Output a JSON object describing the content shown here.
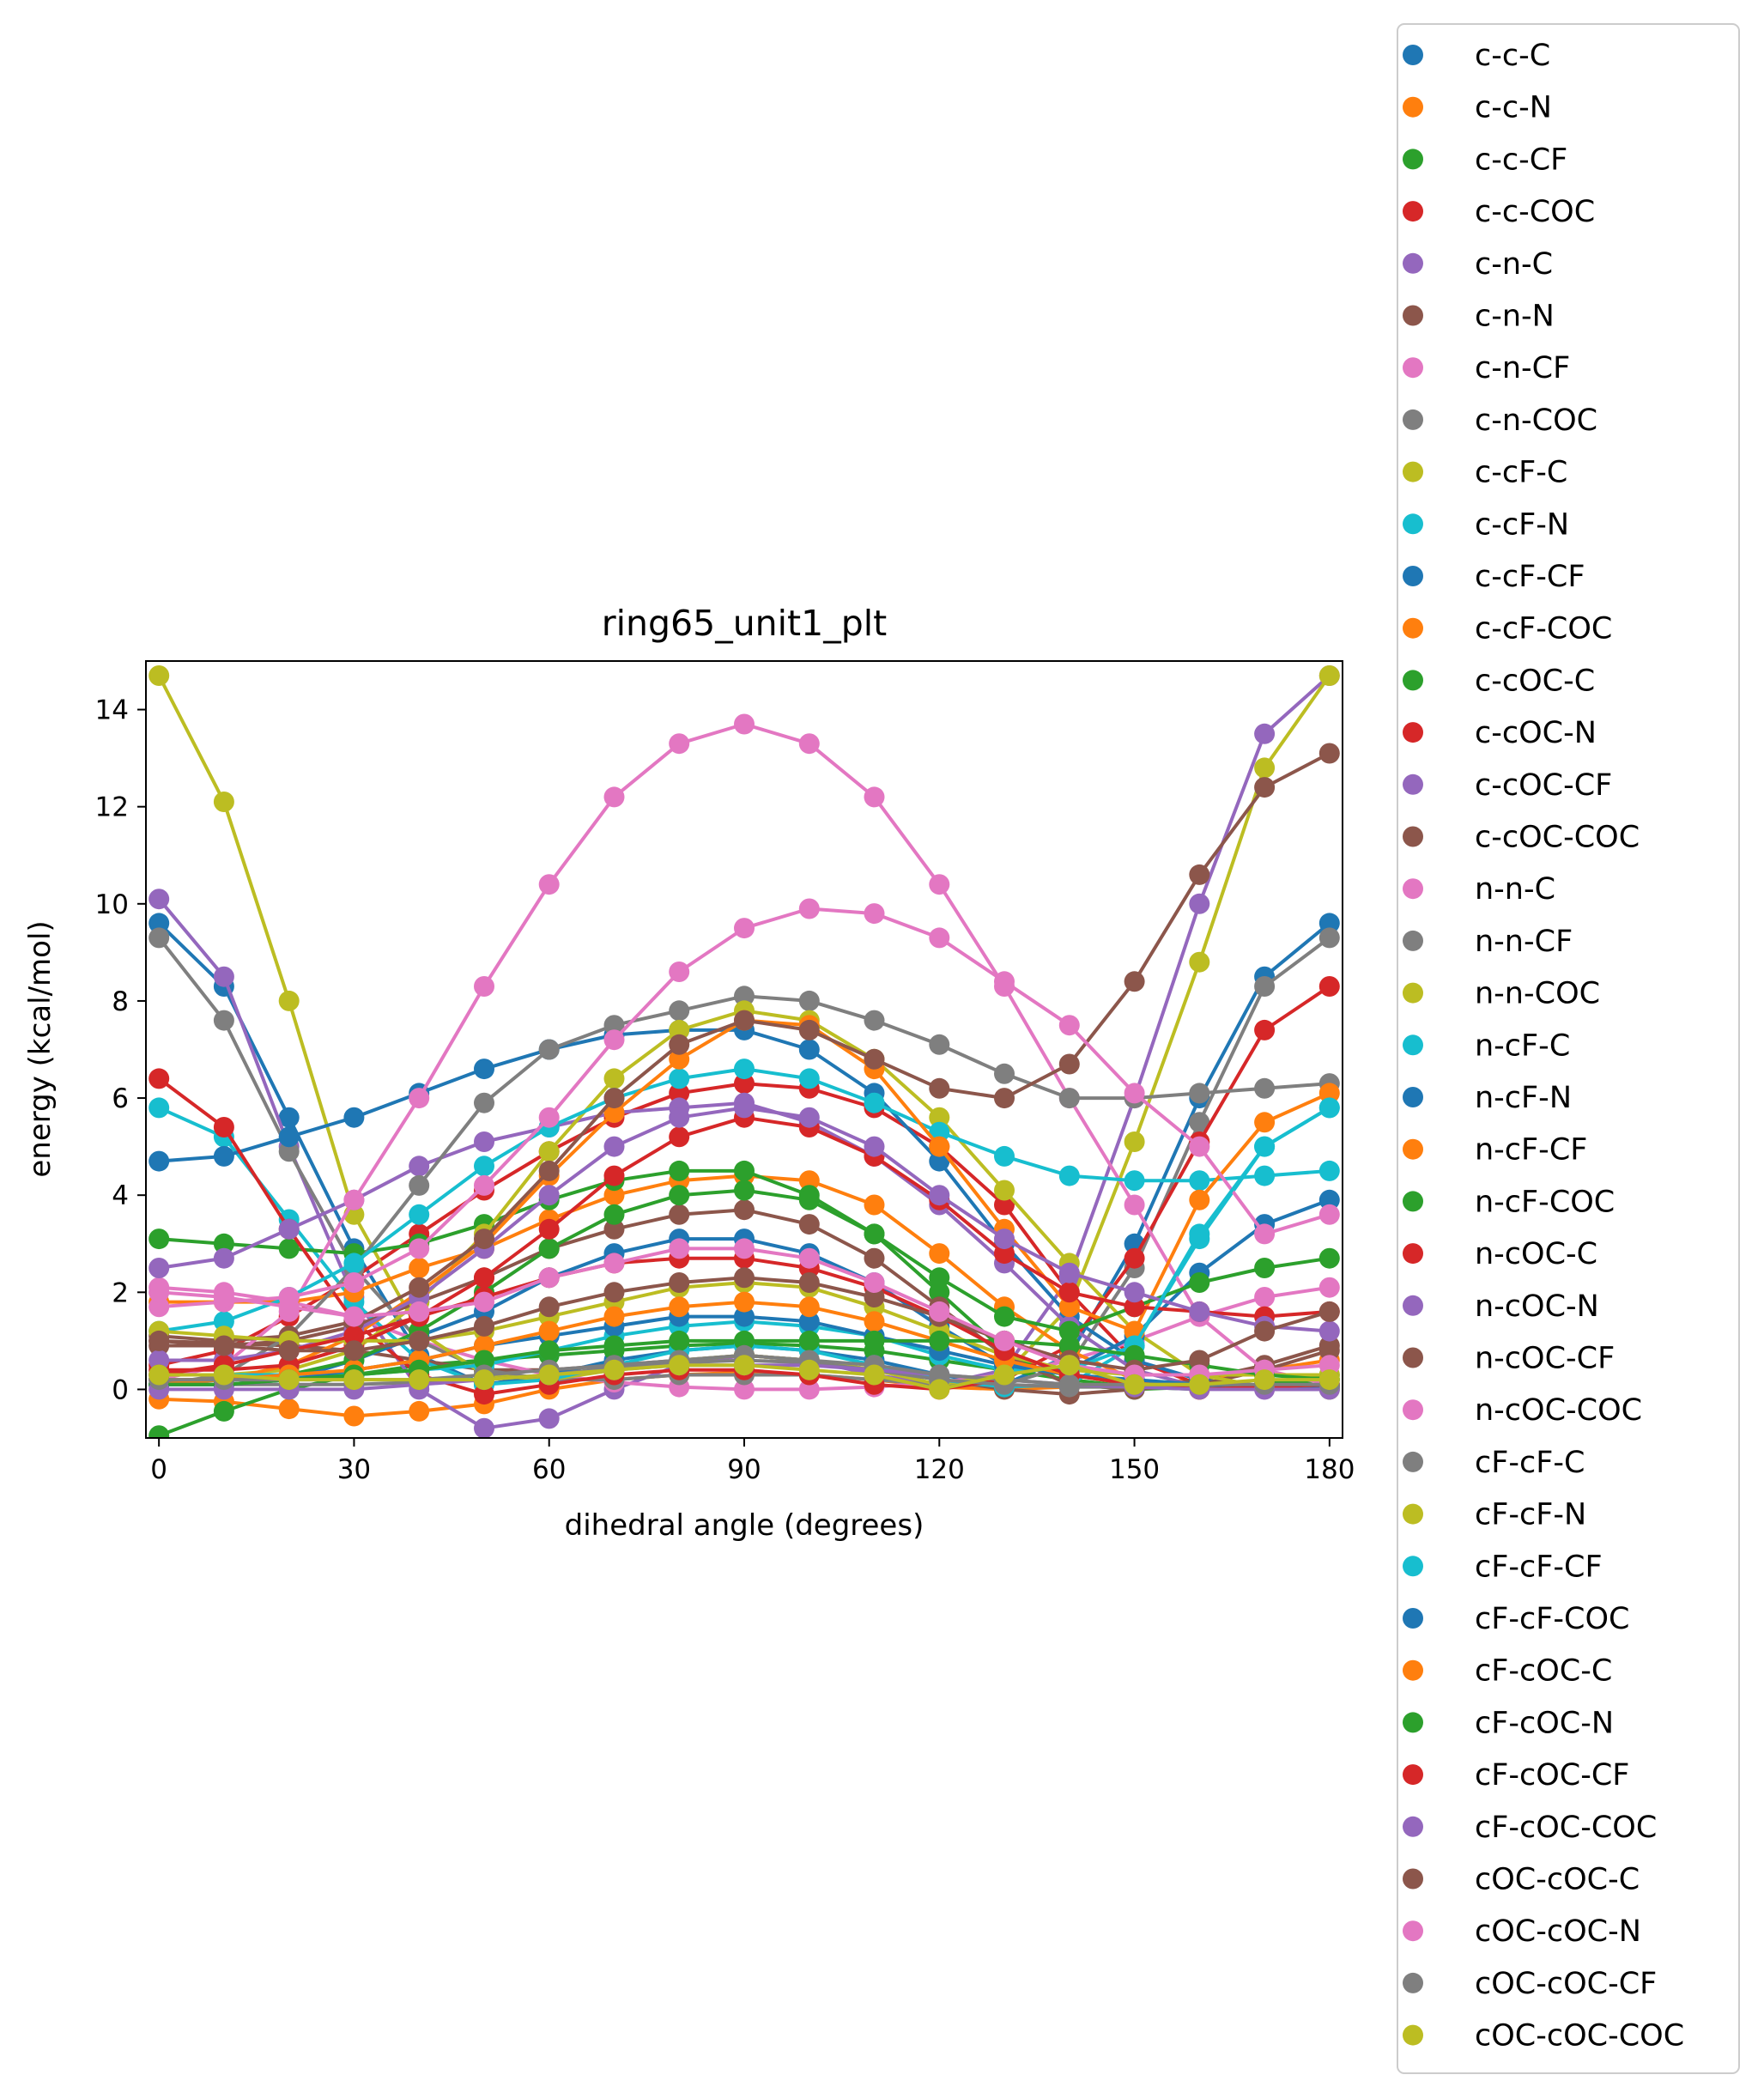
{
  "chart_data": {
    "type": "line",
    "title": "ring65_unit1_plt",
    "xlabel": "dihedral angle (degrees)",
    "ylabel": "energy (kcal/mol)",
    "xlim": [
      -2,
      182
    ],
    "ylim": [
      -1,
      15
    ],
    "xticks": [
      0,
      30,
      60,
      90,
      120,
      150,
      180
    ],
    "yticks": [
      0,
      2,
      4,
      6,
      8,
      10,
      12,
      14
    ],
    "grid": false,
    "legend_position": "outside-right",
    "markers": true,
    "x": [
      0,
      10,
      20,
      30,
      40,
      50,
      60,
      70,
      80,
      90,
      100,
      110,
      120,
      130,
      140,
      150,
      160,
      170,
      180
    ],
    "series": [
      {
        "name": "c-c-C",
        "color": "#1f77b4",
        "values": [
          9.6,
          8.3,
          5.6,
          2.9,
          0.7,
          0.1,
          0.3,
          0.6,
          0.8,
          0.9,
          0.8,
          0.6,
          0.3,
          0.1,
          0.7,
          3.0,
          6.0,
          8.5,
          9.6
        ]
      },
      {
        "name": "c-c-N",
        "color": "#ff7f0e",
        "values": [
          -0.2,
          -0.25,
          -0.4,
          -0.55,
          -0.45,
          -0.3,
          0.0,
          0.2,
          0.3,
          0.35,
          0.3,
          0.2,
          0.05,
          0.0,
          0.05,
          0.1,
          0.2,
          0.4,
          0.6
        ]
      },
      {
        "name": "c-c-CF",
        "color": "#2ca02c",
        "values": [
          -0.95,
          -0.45,
          0.0,
          0.3,
          0.5,
          0.6,
          0.7,
          0.8,
          0.9,
          0.95,
          0.9,
          0.8,
          0.6,
          0.4,
          0.2,
          0.05,
          0.0,
          0.1,
          0.3
        ]
      },
      {
        "name": "c-c-COC",
        "color": "#d62728",
        "values": [
          0.5,
          0.8,
          1.5,
          2.3,
          3.2,
          4.1,
          4.9,
          5.6,
          6.1,
          6.3,
          6.2,
          5.8,
          5.0,
          3.8,
          2.0,
          0.6,
          0.1,
          0.05,
          0.1
        ]
      },
      {
        "name": "c-n-C",
        "color": "#9467bd",
        "values": [
          10.1,
          8.5,
          5.0,
          1.9,
          0.0,
          -0.8,
          -0.6,
          0.0,
          0.5,
          0.7,
          0.6,
          0.3,
          0.1,
          0.4,
          2.3,
          6.0,
          10.0,
          13.5,
          14.7
        ]
      },
      {
        "name": "c-n-N",
        "color": "#8c564b",
        "values": [
          1.0,
          0.95,
          0.9,
          0.8,
          0.6,
          0.4,
          0.4,
          0.5,
          0.6,
          0.7,
          0.6,
          0.4,
          0.2,
          0.0,
          -0.1,
          0.0,
          0.2,
          0.5,
          0.9
        ]
      },
      {
        "name": "c-n-CF",
        "color": "#e377c2",
        "values": [
          2.1,
          2.0,
          1.8,
          1.5,
          1.0,
          0.6,
          0.3,
          0.15,
          0.05,
          0.0,
          0.0,
          0.05,
          0.15,
          0.3,
          0.6,
          1.0,
          1.5,
          1.9,
          2.1
        ]
      },
      {
        "name": "c-n-COC",
        "color": "#7f7f7f",
        "values": [
          9.3,
          7.6,
          4.9,
          2.5,
          1.0,
          0.4,
          0.2,
          0.2,
          0.3,
          0.3,
          0.3,
          0.2,
          0.1,
          0.1,
          0.5,
          2.5,
          5.5,
          8.3,
          9.3
        ]
      },
      {
        "name": "c-cF-C",
        "color": "#bcbd22",
        "values": [
          14.7,
          12.1,
          8.0,
          3.6,
          1.2,
          0.3,
          0.2,
          0.4,
          0.6,
          0.7,
          0.6,
          0.4,
          0.1,
          0.3,
          1.7,
          5.1,
          8.8,
          12.8,
          14.7
        ]
      },
      {
        "name": "c-cF-N",
        "color": "#17becf",
        "values": [
          5.8,
          5.2,
          3.5,
          1.8,
          0.6,
          0.1,
          0.2,
          0.5,
          0.8,
          0.9,
          0.8,
          0.5,
          0.2,
          0.05,
          0.1,
          0.9,
          3.1,
          5.0,
          5.8
        ]
      },
      {
        "name": "c-cF-CF",
        "color": "#1f77b4",
        "values": [
          4.7,
          4.8,
          5.2,
          5.6,
          6.1,
          6.6,
          7.0,
          7.3,
          7.4,
          7.4,
          7.0,
          6.1,
          4.7,
          3.0,
          1.5,
          0.6,
          0.2,
          0.05,
          0.0
        ]
      },
      {
        "name": "c-cF-COC",
        "color": "#ff7f0e",
        "values": [
          1.8,
          1.8,
          1.8,
          2.0,
          2.5,
          2.9,
          3.5,
          4.0,
          4.3,
          4.4,
          4.3,
          3.8,
          2.8,
          1.7,
          0.8,
          0.2,
          0.0,
          0.05,
          0.1
        ]
      },
      {
        "name": "c-cOC-C",
        "color": "#2ca02c",
        "values": [
          3.1,
          3.0,
          2.9,
          2.8,
          3.0,
          3.4,
          3.9,
          4.3,
          4.5,
          4.5,
          4.0,
          3.2,
          2.0,
          0.8,
          0.1,
          0.0,
          0.05,
          0.1,
          0.2
        ]
      },
      {
        "name": "c-cOC-N",
        "color": "#d62728",
        "values": [
          6.4,
          5.4,
          3.3,
          1.4,
          0.3,
          -0.1,
          0.1,
          0.3,
          0.4,
          0.4,
          0.3,
          0.1,
          0.0,
          0.2,
          0.9,
          2.7,
          5.1,
          7.4,
          8.3
        ]
      },
      {
        "name": "c-cOC-CF",
        "color": "#9467bd",
        "values": [
          2.5,
          2.7,
          3.3,
          3.9,
          4.6,
          5.1,
          5.4,
          5.7,
          5.8,
          5.9,
          5.5,
          4.8,
          3.8,
          2.6,
          1.3,
          0.4,
          0.05,
          0.0,
          0.0
        ]
      },
      {
        "name": "c-cOC-COC",
        "color": "#8c564b",
        "values": [
          0.9,
          0.9,
          1.0,
          1.3,
          1.8,
          2.3,
          2.9,
          3.3,
          3.6,
          3.7,
          3.4,
          2.7,
          1.7,
          0.7,
          0.1,
          0.0,
          0.1,
          0.4,
          0.8
        ]
      },
      {
        "name": "n-n-C",
        "color": "#e377c2",
        "values": [
          0.2,
          0.5,
          1.6,
          3.9,
          6.0,
          8.3,
          10.4,
          12.2,
          13.3,
          13.7,
          13.3,
          12.2,
          10.4,
          8.3,
          6.0,
          3.8,
          1.5,
          0.4,
          0.1
        ]
      },
      {
        "name": "n-n-CF",
        "color": "#7f7f7f",
        "values": [
          0.1,
          0.3,
          1.1,
          2.5,
          4.2,
          5.9,
          7.0,
          7.5,
          7.8,
          8.1,
          8.0,
          7.6,
          7.1,
          6.5,
          6.0,
          6.0,
          6.1,
          6.2,
          6.3
        ]
      },
      {
        "name": "n-n-COC",
        "color": "#bcbd22",
        "values": [
          0.3,
          0.3,
          0.4,
          0.8,
          1.8,
          3.2,
          4.9,
          6.4,
          7.4,
          7.8,
          7.6,
          6.8,
          5.6,
          4.1,
          2.6,
          1.2,
          0.3,
          0.05,
          0.0
        ]
      },
      {
        "name": "n-cF-C",
        "color": "#17becf",
        "values": [
          1.2,
          1.4,
          1.9,
          2.6,
          3.6,
          4.6,
          5.4,
          6.0,
          6.4,
          6.6,
          6.4,
          5.9,
          5.3,
          4.8,
          4.4,
          4.3,
          4.3,
          4.4,
          4.5
        ]
      },
      {
        "name": "n-cF-N",
        "color": "#1f77b4",
        "values": [
          0.1,
          0.1,
          0.2,
          0.6,
          1.1,
          1.6,
          2.3,
          2.8,
          3.1,
          3.1,
          2.8,
          2.2,
          1.3,
          0.5,
          0.4,
          1.1,
          2.4,
          3.4,
          3.9
        ]
      },
      {
        "name": "n-cF-CF",
        "color": "#ff7f0e",
        "values": [
          0.1,
          0.2,
          0.5,
          1.1,
          2.0,
          3.0,
          4.4,
          5.7,
          6.8,
          7.6,
          7.5,
          6.6,
          5.0,
          3.3,
          1.7,
          1.2,
          3.9,
          5.5,
          6.1
        ]
      },
      {
        "name": "n-cF-COC",
        "color": "#2ca02c",
        "values": [
          0.2,
          0.2,
          0.3,
          0.6,
          1.2,
          2.0,
          2.9,
          3.6,
          4.0,
          4.1,
          3.9,
          3.2,
          2.3,
          1.5,
          1.2,
          1.7,
          2.2,
          2.5,
          2.7
        ]
      },
      {
        "name": "n-cOC-C",
        "color": "#d62728",
        "values": [
          0.4,
          0.4,
          0.5,
          0.9,
          1.5,
          2.3,
          3.3,
          4.4,
          5.2,
          5.6,
          5.4,
          4.8,
          3.9,
          2.8,
          2.0,
          1.7,
          1.6,
          1.5,
          1.6
        ]
      },
      {
        "name": "n-cOC-N",
        "color": "#9467bd",
        "values": [
          0.6,
          0.6,
          0.8,
          1.2,
          1.9,
          2.9,
          4.0,
          5.0,
          5.6,
          5.8,
          5.6,
          5.0,
          4.0,
          3.1,
          2.4,
          2.0,
          1.6,
          1.3,
          1.2
        ]
      },
      {
        "name": "n-cOC-CF",
        "color": "#8c564b",
        "values": [
          1.1,
          1.0,
          1.1,
          1.4,
          2.1,
          3.1,
          4.5,
          6.0,
          7.1,
          7.6,
          7.4,
          6.8,
          6.2,
          6.0,
          6.7,
          8.4,
          10.6,
          12.4,
          13.1
        ]
      },
      {
        "name": "n-cOC-COC",
        "color": "#e377c2",
        "values": [
          1.7,
          1.8,
          1.9,
          2.2,
          2.9,
          4.2,
          5.6,
          7.2,
          8.6,
          9.5,
          9.9,
          9.8,
          9.3,
          8.4,
          7.5,
          6.1,
          5.0,
          3.2,
          3.6
        ]
      },
      {
        "name": "cF-cF-C",
        "color": "#7f7f7f",
        "values": [
          0.1,
          0.1,
          0.1,
          0.1,
          0.15,
          0.2,
          0.3,
          0.45,
          0.55,
          0.6,
          0.55,
          0.4,
          0.2,
          0.1,
          0.05,
          0.05,
          0.05,
          0.05,
          0.05
        ]
      },
      {
        "name": "cF-cF-N",
        "color": "#bcbd22",
        "values": [
          1.2,
          1.1,
          1.0,
          1.0,
          1.0,
          1.2,
          1.5,
          1.8,
          2.1,
          2.2,
          2.1,
          1.7,
          1.2,
          0.7,
          0.4,
          0.3,
          0.3,
          0.3,
          0.3
        ]
      },
      {
        "name": "cF-cF-CF",
        "color": "#17becf",
        "values": [
          0.3,
          0.3,
          0.3,
          0.3,
          0.4,
          0.5,
          0.8,
          1.1,
          1.3,
          1.4,
          1.3,
          1.1,
          0.7,
          0.4,
          0.4,
          0.9,
          3.2,
          5.0,
          5.8
        ]
      },
      {
        "name": "cF-cF-COC",
        "color": "#1f77b4",
        "values": [
          0.1,
          0.1,
          0.2,
          0.4,
          0.6,
          0.9,
          1.1,
          1.3,
          1.5,
          1.5,
          1.4,
          1.1,
          0.8,
          0.5,
          0.3,
          0.2,
          0.1,
          0.05,
          0.05
        ]
      },
      {
        "name": "cF-cOC-C",
        "color": "#ff7f0e",
        "values": [
          0.2,
          0.2,
          0.3,
          0.4,
          0.6,
          0.9,
          1.2,
          1.5,
          1.7,
          1.8,
          1.7,
          1.4,
          1.0,
          0.6,
          0.3,
          0.1,
          0.0,
          0.05,
          0.1
        ]
      },
      {
        "name": "cF-cOC-N",
        "color": "#2ca02c",
        "values": [
          0.1,
          0.1,
          0.2,
          0.3,
          0.4,
          0.6,
          0.8,
          0.9,
          1.0,
          1.0,
          1.0,
          1.0,
          1.0,
          1.0,
          0.9,
          0.7,
          0.5,
          0.3,
          0.2
        ]
      },
      {
        "name": "cF-cOC-CF",
        "color": "#d62728",
        "values": [
          0.3,
          0.5,
          0.8,
          1.1,
          1.5,
          1.9,
          2.3,
          2.6,
          2.7,
          2.7,
          2.5,
          2.1,
          1.5,
          0.8,
          0.3,
          0.1,
          0.0,
          0.05,
          0.1
        ]
      },
      {
        "name": "cF-cOC-COC",
        "color": "#9467bd",
        "values": [
          0.0,
          0.0,
          0.0,
          0.0,
          0.1,
          0.2,
          0.3,
          0.4,
          0.5,
          0.5,
          0.5,
          0.4,
          0.3,
          0.2,
          0.1,
          0.05,
          0.0,
          0.0,
          0.0
        ]
      },
      {
        "name": "cOC-cOC-C",
        "color": "#8c564b",
        "values": [
          1.0,
          0.9,
          0.8,
          0.8,
          1.0,
          1.3,
          1.7,
          2.0,
          2.2,
          2.3,
          2.2,
          1.9,
          1.5,
          1.0,
          0.6,
          0.4,
          0.6,
          1.2,
          1.6
        ]
      },
      {
        "name": "cOC-cOC-N",
        "color": "#e377c2",
        "values": [
          2.0,
          1.9,
          1.7,
          1.5,
          1.6,
          1.8,
          2.3,
          2.6,
          2.9,
          2.9,
          2.7,
          2.2,
          1.6,
          1.0,
          0.5,
          0.3,
          0.3,
          0.4,
          0.5
        ]
      },
      {
        "name": "cOC-cOC-CF",
        "color": "#7f7f7f",
        "values": [
          0.2,
          0.2,
          0.2,
          0.2,
          0.2,
          0.3,
          0.4,
          0.5,
          0.6,
          0.7,
          0.6,
          0.5,
          0.3,
          0.2,
          0.1,
          0.1,
          0.1,
          0.1,
          0.1
        ]
      },
      {
        "name": "cOC-cOC-COC",
        "color": "#bcbd22",
        "values": [
          0.3,
          0.3,
          0.2,
          0.2,
          0.2,
          0.2,
          0.3,
          0.4,
          0.5,
          0.5,
          0.4,
          0.3,
          0.0,
          0.3,
          0.5,
          0.1,
          0.1,
          0.2,
          0.2
        ]
      }
    ]
  }
}
